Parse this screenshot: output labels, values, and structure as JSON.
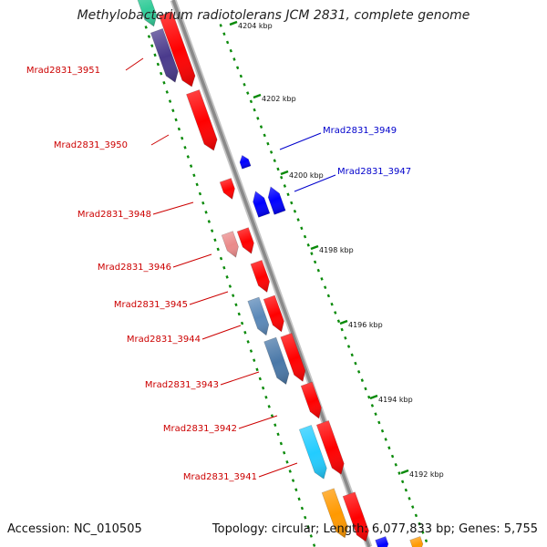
{
  "title": "Methylobacterium radiotolerans JCM 2831, complete genome",
  "footer": {
    "accession": "Accession: NC_010505",
    "summary": "Topology: circular; Length: 6,077,833 bp; Genes: 5,755"
  },
  "colors": {
    "forward_gene": "#ff0000",
    "reverse_gene": "#0000ff",
    "ruler_ticks": "#0a8a0a",
    "backbone": "#8a8a8a",
    "label_forward": "#cc0000",
    "label_reverse": "#0000cc"
  },
  "kbp_ticks": [
    {
      "label": "4204 kbp",
      "kbp": 4204
    },
    {
      "label": "4202 kbp",
      "kbp": 4202
    },
    {
      "label": "4200 kbp",
      "kbp": 4200
    },
    {
      "label": "4198 kbp",
      "kbp": 4198
    },
    {
      "label": "4196 kbp",
      "kbp": 4196
    },
    {
      "label": "4194 kbp",
      "kbp": 4194
    },
    {
      "label": "4192 kbp",
      "kbp": 4192
    }
  ],
  "gene_labels": [
    {
      "text": "Mrad2831_3951",
      "strand": "forward"
    },
    {
      "text": "Mrad2831_3950",
      "strand": "forward"
    },
    {
      "text": "Mrad2831_3949",
      "strand": "reverse"
    },
    {
      "text": "Mrad2831_3947",
      "strand": "reverse"
    },
    {
      "text": "Mrad2831_3948",
      "strand": "forward"
    },
    {
      "text": "Mrad2831_3946",
      "strand": "forward"
    },
    {
      "text": "Mrad2831_3945",
      "strand": "forward"
    },
    {
      "text": "Mrad2831_3944",
      "strand": "forward"
    },
    {
      "text": "Mrad2831_3943",
      "strand": "forward"
    },
    {
      "text": "Mrad2831_3942",
      "strand": "forward"
    },
    {
      "text": "Mrad2831_3941",
      "strand": "forward"
    }
  ]
}
